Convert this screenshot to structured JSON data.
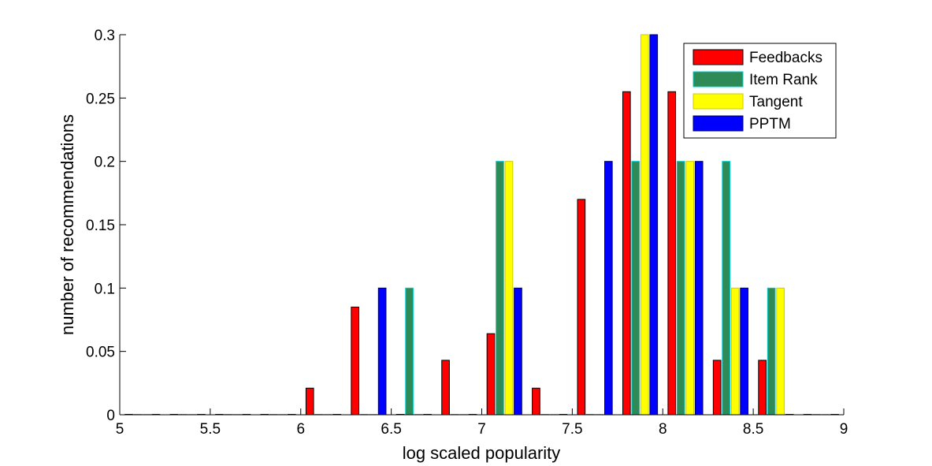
{
  "chart_data": {
    "type": "bar",
    "title": "",
    "xlabel": "log scaled popularity",
    "ylabel": "number of recommendations",
    "xlim": [
      5,
      9
    ],
    "ylim": [
      0,
      0.3
    ],
    "xticks": [
      "5",
      "5.5",
      "6",
      "6.5",
      "7",
      "7.5",
      "8",
      "8.5",
      "9"
    ],
    "yticks": [
      "0",
      "0.05",
      "0.1",
      "0.15",
      "0.2",
      "0.25",
      "0.3"
    ],
    "grid": false,
    "legend_position": "top-right",
    "x": [
      5.125,
      5.375,
      5.625,
      5.875,
      6.125,
      6.375,
      6.625,
      6.875,
      7.125,
      7.375,
      7.625,
      7.875,
      8.125,
      8.375,
      8.625,
      8.875
    ],
    "series": [
      {
        "name": "Feedbacks",
        "color": "#ff0000",
        "edge": "#000000",
        "values": [
          0,
          0,
          0,
          0,
          0.021,
          0.085,
          0,
          0.043,
          0.064,
          0.021,
          0.17,
          0.255,
          0.255,
          0.043,
          0.043,
          0
        ]
      },
      {
        "name": "Item Rank",
        "color": "#2e8b57",
        "edge": "#00cccc",
        "values": [
          0,
          0,
          0,
          0,
          0,
          0,
          0.1,
          0,
          0.2,
          0,
          0,
          0.2,
          0.2,
          0.2,
          0.1,
          0
        ]
      },
      {
        "name": "Tangent",
        "color": "#ffff00",
        "edge": "#cccc00",
        "values": [
          0,
          0,
          0,
          0,
          0,
          0,
          0,
          0,
          0.2,
          0,
          0,
          0.3,
          0.2,
          0.1,
          0.1,
          0
        ]
      },
      {
        "name": "PPTM",
        "color": "#0000ff",
        "edge": "#000066",
        "values": [
          0,
          0,
          0,
          0,
          0,
          0.1,
          0,
          0,
          0.1,
          0,
          0.2,
          0.3,
          0.2,
          0.1,
          0,
          0
        ]
      }
    ]
  }
}
